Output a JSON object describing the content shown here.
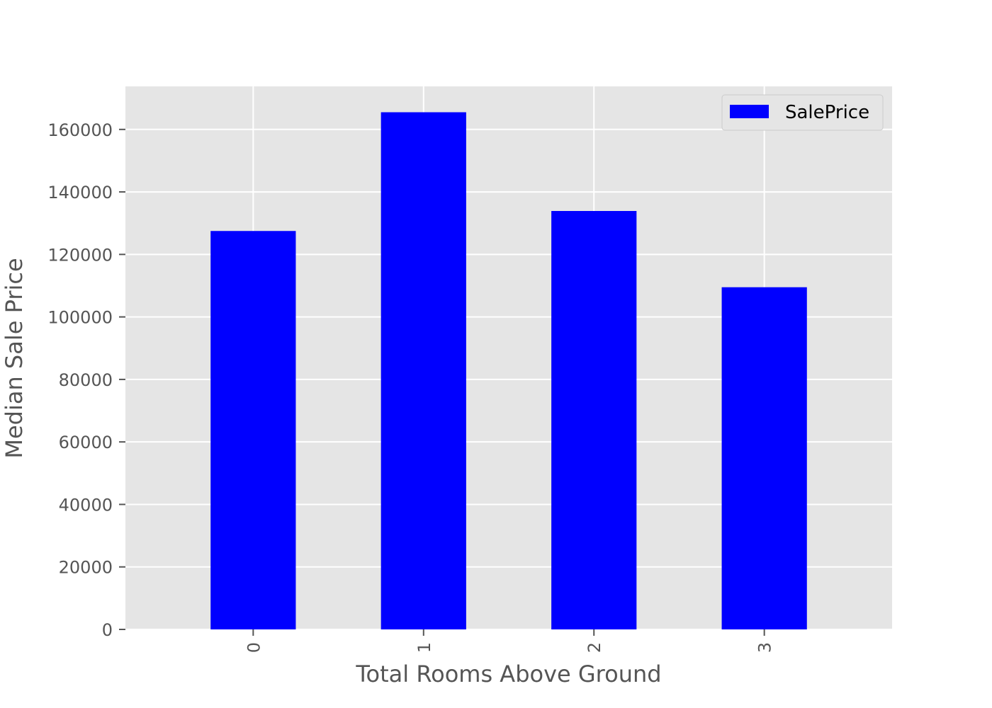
{
  "chart_data": {
    "type": "bar",
    "categories": [
      "0",
      "1",
      "2",
      "3"
    ],
    "series": [
      {
        "name": "SalePrice",
        "values": [
          127500,
          165500,
          133900,
          109500
        ],
        "color": "#0000ff"
      }
    ],
    "xlabel": "Total Rooms Above Ground",
    "ylabel": "Median Sale Price",
    "ylim": [
      0,
      173775
    ],
    "yticks": [
      0,
      20000,
      40000,
      60000,
      80000,
      100000,
      120000,
      140000,
      160000
    ],
    "grid": true,
    "legend_position": "top-right",
    "x_tick_rotation": "vertical",
    "colors": {
      "plot_background": "#e5e5e5",
      "grid": "#ffffff",
      "tick_text": "#555555",
      "legend_background": "#e5e5e5",
      "legend_border": "#cccccc"
    }
  }
}
